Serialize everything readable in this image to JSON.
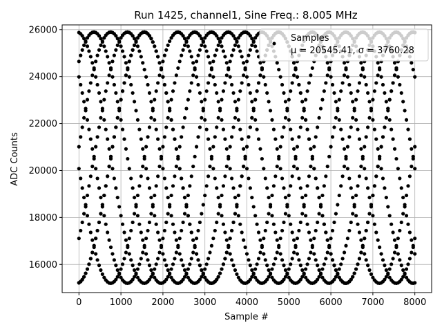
{
  "chart_data": {
    "type": "scatter",
    "title": "Run 1425, channel1, Sine Freq.: 8.005 MHz",
    "xlabel": "Sample #",
    "ylabel": "ADC Counts",
    "xlim": [
      -400,
      8400
    ],
    "ylim": [
      14800,
      26200
    ],
    "xticks": [
      0,
      1000,
      2000,
      3000,
      4000,
      5000,
      6000,
      7000,
      8000
    ],
    "yticks": [
      16000,
      18000,
      20000,
      22000,
      24000,
      26000
    ],
    "xtick_labels": [
      "0",
      "1000",
      "2000",
      "3000",
      "4000",
      "5000",
      "6000",
      "7000",
      "8000"
    ],
    "ytick_labels": [
      "16000",
      "18000",
      "20000",
      "22000",
      "24000",
      "26000"
    ],
    "grid": true,
    "legend": {
      "placement": "top-right",
      "title": "Samples",
      "stats": "μ = 20545.41, σ = 3760.28"
    },
    "series": [
      {
        "name": "Samples",
        "color": "#000000",
        "model": "sine",
        "mean": 20545.41,
        "amplitude": 5350,
        "period_samples": 3200,
        "phases_deg": [
          95,
          5,
          -85,
          185,
          275,
          140,
          50,
          -40
        ],
        "x_range": [
          0,
          8000
        ],
        "x_step": 40,
        "y_clip": [
          15200,
          25900
        ]
      }
    ]
  }
}
